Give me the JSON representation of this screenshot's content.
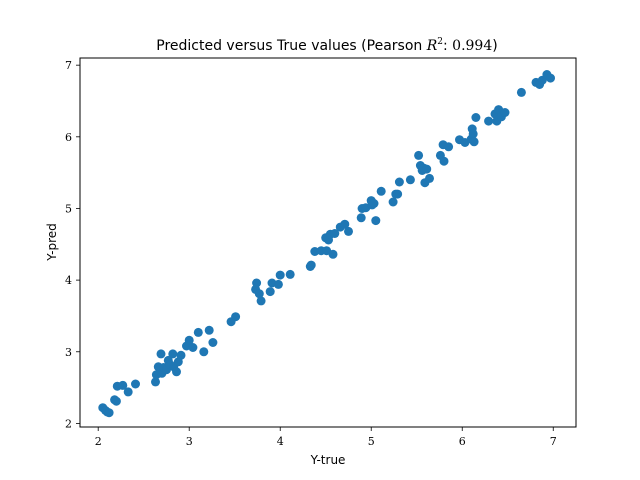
{
  "chart_data": {
    "type": "scatter",
    "title": {
      "prefix": "Predicted versus True values (Pearson ",
      "r_symbol": "R",
      "r_exponent": "2",
      "colon": ":",
      "value": "0.994",
      "suffix": ")"
    },
    "xlabel": "Y-true",
    "ylabel": "Y-pred",
    "xlim": [
      1.8,
      7.25
    ],
    "ylim": [
      1.95,
      7.1
    ],
    "xticks": [
      2,
      3,
      4,
      5,
      6,
      7
    ],
    "yticks": [
      2,
      3,
      4,
      5,
      6,
      7
    ],
    "grid": false,
    "marker_color": "#1f77b4",
    "points": [
      [
        2.05,
        2.22
      ],
      [
        2.08,
        2.18
      ],
      [
        2.1,
        2.16
      ],
      [
        2.12,
        2.15
      ],
      [
        2.18,
        2.33
      ],
      [
        2.2,
        2.31
      ],
      [
        2.21,
        2.52
      ],
      [
        2.27,
        2.53
      ],
      [
        2.33,
        2.44
      ],
      [
        2.41,
        2.55
      ],
      [
        2.63,
        2.58
      ],
      [
        2.64,
        2.68
      ],
      [
        2.66,
        2.79
      ],
      [
        2.69,
        2.97
      ],
      [
        2.7,
        2.7
      ],
      [
        2.72,
        2.78
      ],
      [
        2.75,
        2.75
      ],
      [
        2.77,
        2.88
      ],
      [
        2.79,
        2.82
      ],
      [
        2.82,
        2.97
      ],
      [
        2.83,
        2.79
      ],
      [
        2.86,
        2.72
      ],
      [
        2.88,
        2.86
      ],
      [
        2.91,
        2.95
      ],
      [
        2.97,
        3.08
      ],
      [
        3.0,
        3.16
      ],
      [
        3.04,
        3.06
      ],
      [
        3.1,
        3.27
      ],
      [
        3.16,
        3.0
      ],
      [
        3.22,
        3.3
      ],
      [
        3.26,
        3.13
      ],
      [
        3.46,
        3.42
      ],
      [
        3.51,
        3.49
      ],
      [
        3.73,
        3.87
      ],
      [
        3.74,
        3.96
      ],
      [
        3.77,
        3.81
      ],
      [
        3.79,
        3.71
      ],
      [
        3.89,
        3.84
      ],
      [
        3.91,
        3.96
      ],
      [
        3.98,
        3.94
      ],
      [
        4.0,
        4.07
      ],
      [
        4.11,
        4.08
      ],
      [
        4.33,
        4.19
      ],
      [
        4.34,
        4.21
      ],
      [
        4.38,
        4.4
      ],
      [
        4.45,
        4.41
      ],
      [
        4.5,
        4.59
      ],
      [
        4.51,
        4.41
      ],
      [
        4.53,
        4.56
      ],
      [
        4.55,
        4.64
      ],
      [
        4.58,
        4.36
      ],
      [
        4.6,
        4.65
      ],
      [
        4.66,
        4.74
      ],
      [
        4.71,
        4.78
      ],
      [
        4.75,
        4.68
      ],
      [
        4.89,
        4.87
      ],
      [
        4.9,
        5.0
      ],
      [
        4.94,
        5.01
      ],
      [
        5.0,
        5.11
      ],
      [
        5.01,
        5.05
      ],
      [
        5.03,
        5.07
      ],
      [
        5.05,
        4.83
      ],
      [
        5.11,
        5.24
      ],
      [
        5.24,
        5.09
      ],
      [
        5.27,
        5.2
      ],
      [
        5.29,
        5.2
      ],
      [
        5.31,
        5.37
      ],
      [
        5.43,
        5.4
      ],
      [
        5.52,
        5.74
      ],
      [
        5.54,
        5.6
      ],
      [
        5.56,
        5.53
      ],
      [
        5.58,
        5.56
      ],
      [
        5.59,
        5.36
      ],
      [
        5.61,
        5.55
      ],
      [
        5.64,
        5.42
      ],
      [
        5.76,
        5.74
      ],
      [
        5.79,
        5.89
      ],
      [
        5.8,
        5.66
      ],
      [
        5.85,
        5.86
      ],
      [
        5.97,
        5.96
      ],
      [
        6.03,
        5.92
      ],
      [
        6.1,
        5.97
      ],
      [
        6.11,
        6.11
      ],
      [
        6.12,
        6.04
      ],
      [
        6.13,
        5.93
      ],
      [
        6.15,
        6.27
      ],
      [
        6.29,
        6.22
      ],
      [
        6.36,
        6.32
      ],
      [
        6.38,
        6.22
      ],
      [
        6.4,
        6.38
      ],
      [
        6.43,
        6.28
      ],
      [
        6.47,
        6.34
      ],
      [
        6.65,
        6.62
      ],
      [
        6.81,
        6.76
      ],
      [
        6.85,
        6.73
      ],
      [
        6.88,
        6.79
      ],
      [
        6.93,
        6.87
      ],
      [
        6.97,
        6.82
      ]
    ]
  }
}
